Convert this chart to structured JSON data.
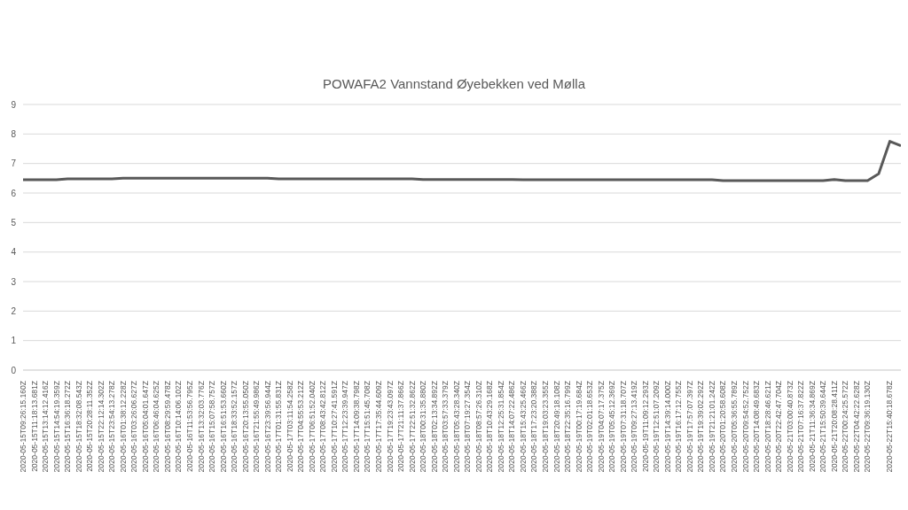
{
  "chart_data": {
    "type": "line",
    "title": "POWAFA2 Vannstand Øyebekken ved Mølla",
    "categories": [
      "2020-05-15T09:26:15.160Z",
      "2020-05-15T11:18:13.681Z",
      "2020-05-15T13:14:12.416Z",
      "2020-05-15T14:54:19.359Z",
      "2020-05-15T16:36:18.272Z",
      "2020-05-15T18:32:08.543Z",
      "2020-05-15T20:28:11.352Z",
      "2020-05-15T22:12:14.302Z",
      "2020-05-15T23:54:13.278Z",
      "2020-05-16T01:38:12.228Z",
      "2020-05-16T03:26:06.627Z",
      "2020-05-16T05:04:01.647Z",
      "2020-05-16T06:46:04.625Z",
      "2020-05-16T08:29:59.478Z",
      "2020-05-16T10:14:06.102Z",
      "2020-05-16T11:53:56.795Z",
      "2020-05-16T13:32:03.776Z",
      "2020-05-16T15:07:58.757Z",
      "2020-05-16T16:51:53.660Z",
      "2020-05-16T18:33:52.157Z",
      "2020-05-16T20:13:55.050Z",
      "2020-05-16T21:55:49.986Z",
      "2020-05-16T23:39:56.944Z",
      "2020-05-17T01:31:55.831Z",
      "2020-05-17T03:11:54.258Z",
      "2020-05-17T04:55:53.212Z",
      "2020-05-17T06:51:52.040Z",
      "2020-05-17T08:43:42.812Z",
      "2020-05-17T10:27:41.591Z",
      "2020-05-17T12:23:39.947Z",
      "2020-05-17T14:09:38.798Z",
      "2020-05-17T15:51:45.708Z",
      "2020-05-17T17:35:44.609Z",
      "2020-05-17T19:23:43.097Z",
      "2020-05-17T21:11:37.866Z",
      "2020-05-17T22:51:32.862Z",
      "2020-05-18T00:31:35.880Z",
      "2020-05-18T02:13:34.892Z",
      "2020-05-18T03:57:33.379Z",
      "2020-05-18T05:43:28.340Z",
      "2020-05-18T07:19:27.354Z",
      "2020-05-18T08:57:26.310Z",
      "2020-05-18T10:43:29.168Z",
      "2020-05-18T12:25:31.854Z",
      "2020-05-18T14:07:22.486Z",
      "2020-05-18T15:43:25.466Z",
      "2020-05-18T17:23:20.388Z",
      "2020-05-18T19:03:23.355Z",
      "2020-05-18T20:49:18.108Z",
      "2020-05-18T22:35:16.799Z",
      "2020-05-19T00:17:19.684Z",
      "2020-05-19T02:01:18.653Z",
      "2020-05-19T04:07:17.375Z",
      "2020-05-19T05:45:12.369Z",
      "2020-05-19T07:31:18.707Z",
      "2020-05-19T09:27:13.419Z",
      "2020-05-19T11:09:12.293Z",
      "2020-05-19T12:51:07.209Z",
      "2020-05-19T14:39:14.000Z",
      "2020-05-19T16:17:12.755Z",
      "2020-05-19T17:57:07.397Z",
      "2020-05-19T19:39:02.292Z",
      "2020-05-19T21:21:01.242Z",
      "2020-05-20T01:20:58.608Z",
      "2020-05-20T05:36:55.789Z",
      "2020-05-20T09:54:52.752Z",
      "2020-05-20T14:08:49.683Z",
      "2020-05-20T18:28:46.621Z",
      "2020-05-20T22:42:47.704Z",
      "2020-05-21T03:00:40.873Z",
      "2020-05-21T07:16:37.822Z",
      "2020-05-21T11:36:34.869Z",
      "2020-05-21T15:50:39.644Z",
      "2020-05-21T20:08:28.411Z",
      "2020-05-22T00:24:25.572Z",
      "2020-05-22T04:42:22.628Z",
      "2020-05-22T09:36:19.130Z",
      null,
      "2020-05-22T15:40:18.678Z",
      null
    ],
    "series": [
      {
        "color": "#595959",
        "values": [
          6.45,
          6.45,
          6.45,
          6.45,
          6.48,
          6.48,
          6.48,
          6.48,
          6.48,
          6.5,
          6.5,
          6.5,
          6.5,
          6.5,
          6.5,
          6.5,
          6.5,
          6.5,
          6.5,
          6.5,
          6.5,
          6.5,
          6.5,
          6.48,
          6.48,
          6.48,
          6.48,
          6.48,
          6.48,
          6.48,
          6.48,
          6.48,
          6.48,
          6.48,
          6.48,
          6.48,
          6.46,
          6.46,
          6.46,
          6.46,
          6.46,
          6.46,
          6.46,
          6.46,
          6.46,
          6.45,
          6.45,
          6.45,
          6.45,
          6.45,
          6.45,
          6.45,
          6.45,
          6.45,
          6.45,
          6.45,
          6.45,
          6.45,
          6.45,
          6.45,
          6.45,
          6.45,
          6.45,
          6.42,
          6.42,
          6.42,
          6.42,
          6.42,
          6.42,
          6.42,
          6.42,
          6.42,
          6.42,
          6.46,
          6.42,
          6.42,
          6.42,
          6.65,
          7.75,
          7.6
        ]
      }
    ],
    "ylim": [
      0,
      9
    ],
    "yticks": [
      0,
      1,
      2,
      3,
      4,
      5,
      6,
      7,
      8,
      9
    ],
    "grid": "y",
    "marker": "none",
    "line_style": "solid",
    "legend": false
  }
}
